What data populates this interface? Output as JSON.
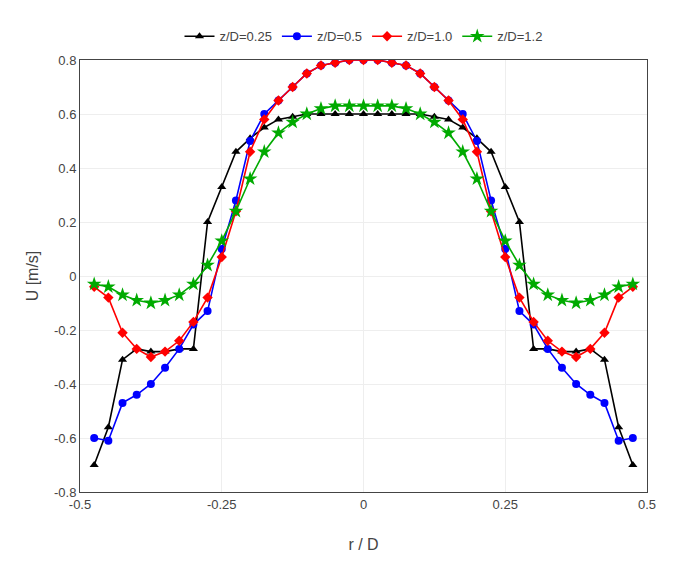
{
  "chart_data": {
    "type": "line",
    "xlabel": "r / D",
    "ylabel": "U [m/s]",
    "x": [
      -0.475,
      -0.45,
      -0.425,
      -0.4,
      -0.375,
      -0.35,
      -0.325,
      -0.3,
      -0.275,
      -0.25,
      -0.225,
      -0.2,
      -0.175,
      -0.15,
      -0.125,
      -0.1,
      -0.075,
      -0.05,
      -0.025,
      0.0,
      0.025,
      0.05,
      0.075,
      0.1,
      0.125,
      0.15,
      0.175,
      0.2,
      0.225,
      0.25,
      0.275,
      0.3,
      0.325,
      0.35,
      0.375,
      0.4,
      0.425,
      0.45,
      0.475
    ],
    "series": [
      {
        "name": "z/D=0.25",
        "color": "#000000",
        "marker": "triangle-up",
        "values": [
          -0.7,
          -0.56,
          -0.31,
          -0.27,
          -0.28,
          -0.28,
          -0.27,
          -0.27,
          0.2,
          0.33,
          0.46,
          0.51,
          0.55,
          0.58,
          0.59,
          0.6,
          0.6,
          0.6,
          0.6,
          0.6,
          0.6,
          0.6,
          0.6,
          0.6,
          0.59,
          0.58,
          0.55,
          0.51,
          0.46,
          0.33,
          0.2,
          -0.27,
          -0.27,
          -0.28,
          -0.28,
          -0.27,
          -0.31,
          -0.56,
          -0.7
        ]
      },
      {
        "name": "z/D=0.5",
        "color": "#0000ff",
        "marker": "circle",
        "values": [
          -0.6,
          -0.61,
          -0.47,
          -0.44,
          -0.4,
          -0.34,
          -0.27,
          -0.18,
          -0.13,
          0.1,
          0.28,
          0.5,
          0.6,
          0.65,
          0.7,
          0.75,
          0.78,
          0.79,
          0.8,
          0.8,
          0.8,
          0.79,
          0.78,
          0.75,
          0.7,
          0.65,
          0.6,
          0.5,
          0.28,
          0.1,
          -0.13,
          -0.18,
          -0.27,
          -0.34,
          -0.4,
          -0.44,
          -0.47,
          -0.61,
          -0.6
        ]
      },
      {
        "name": "z/D=1.0",
        "color": "#ff0000",
        "marker": "diamond",
        "values": [
          -0.04,
          -0.08,
          -0.21,
          -0.27,
          -0.3,
          -0.28,
          -0.24,
          -0.17,
          -0.08,
          0.07,
          0.24,
          0.46,
          0.58,
          0.65,
          0.7,
          0.75,
          0.78,
          0.79,
          0.8,
          0.8,
          0.8,
          0.79,
          0.78,
          0.75,
          0.7,
          0.65,
          0.58,
          0.46,
          0.24,
          0.07,
          -0.08,
          -0.17,
          -0.24,
          -0.28,
          -0.3,
          -0.27,
          -0.21,
          -0.08,
          -0.04
        ]
      },
      {
        "name": "z/D=1.2",
        "color": "#00aa00",
        "marker": "star",
        "values": [
          -0.03,
          -0.04,
          -0.07,
          -0.09,
          -0.1,
          -0.09,
          -0.07,
          -0.03,
          0.04,
          0.13,
          0.24,
          0.36,
          0.46,
          0.53,
          0.57,
          0.6,
          0.62,
          0.63,
          0.63,
          0.63,
          0.63,
          0.63,
          0.62,
          0.6,
          0.57,
          0.53,
          0.46,
          0.36,
          0.24,
          0.13,
          0.04,
          -0.03,
          -0.07,
          -0.09,
          -0.1,
          -0.09,
          -0.07,
          -0.04,
          -0.03
        ]
      }
    ],
    "xlim": [
      -0.5,
      0.5
    ],
    "xticks": [
      -0.5,
      -0.25,
      0,
      0.25,
      0.5
    ],
    "ylim": [
      -0.8,
      0.8
    ],
    "yticks": [
      -0.8,
      -0.6,
      -0.4,
      -0.2,
      0,
      0.2,
      0.4,
      0.6,
      0.8
    ],
    "grid": true
  }
}
